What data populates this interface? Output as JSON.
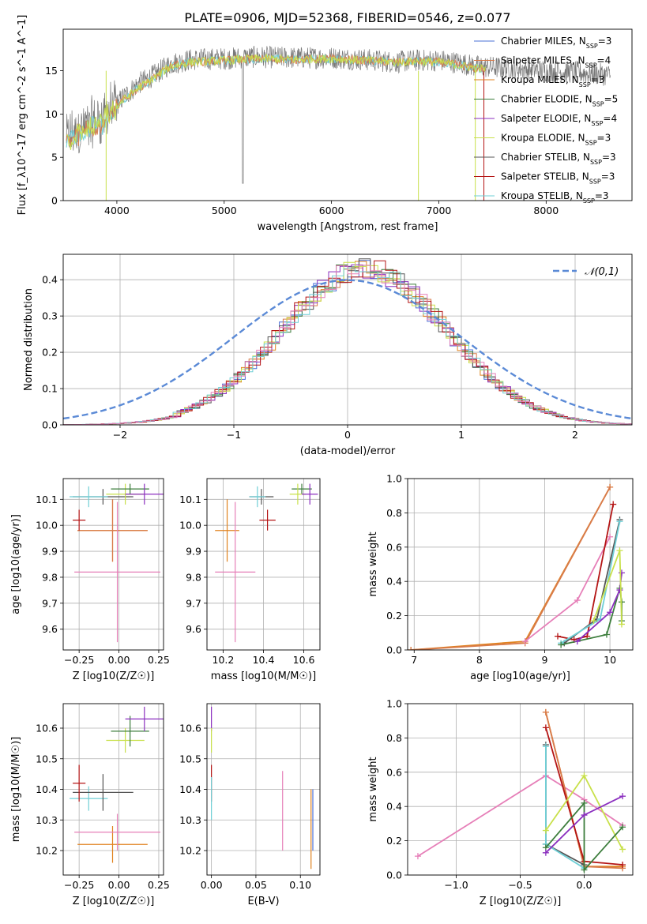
{
  "figure": {
    "title": "PLATE=0906, MJD=52368, FIBERID=0546, z=0.077"
  },
  "colors": {
    "Chabrier MILES": "#4a6fd6",
    "Salpeter MILES": "#d87b4b",
    "Kroupa MILES": "#e0821f",
    "Chabrier ELODIE": "#3c7d3c",
    "Salpeter ELODIE": "#8b2fbf",
    "Kroupa ELODIE": "#c8e04a",
    "Chabrier STELIB": "#555555",
    "Salpeter STELIB": "#b41414",
    "Kroupa STELIB": "#6fcfd6",
    "Pink": "#e67fb8",
    "Normal": "#5b8ad6"
  },
  "chart_data": [
    {
      "id": "spectrum",
      "type": "line",
      "xlabel": "wavelength [Angstrom, rest frame]",
      "ylabel": "Flux [f_λ10^-17 erg cm^-2 s^-1 A^-1]",
      "xlim": [
        3500,
        8800
      ],
      "ylim": [
        0,
        19.8
      ],
      "xticks": [
        4000,
        5000,
        6000,
        7000,
        8000
      ],
      "yticks": [
        0,
        5,
        10,
        15
      ],
      "grid": false,
      "legend_position": "right",
      "legend": [
        {
          "name": "Chabrier MILES",
          "nssp": "3"
        },
        {
          "name": "Salpeter MILES",
          "nssp": "4"
        },
        {
          "name": "Kroupa MILES",
          "nssp": "3"
        },
        {
          "name": "Chabrier ELODIE",
          "nssp": "5"
        },
        {
          "name": "Salpeter ELODIE",
          "nssp": "4"
        },
        {
          "name": "Kroupa ELODIE",
          "nssp": "3"
        },
        {
          "name": "Chabrier STELIB",
          "nssp": "3"
        },
        {
          "name": "Salpeter STELIB",
          "nssp": "3"
        },
        {
          "name": "Kroupa STELIB",
          "nssp": "3"
        }
      ],
      "data_series": [
        {
          "x": [
            3550,
            3700,
            3850,
            3950,
            4050,
            4200,
            4350,
            4500,
            4700,
            5000,
            5300,
            5600,
            6000,
            6300,
            6600,
            6800,
            7000,
            7200,
            7350,
            7500,
            7800,
            8000,
            8300,
            8600
          ],
          "y": [
            7.2,
            8.5,
            9.5,
            10.5,
            11.8,
            13.5,
            14.5,
            15.8,
            16.3,
            16.4,
            16.6,
            16.5,
            16.5,
            16.3,
            16.0,
            16.2,
            16.2,
            15.9,
            15.5,
            15.4,
            15.2,
            15.0,
            14.8,
            14.5
          ]
        }
      ],
      "model_series": [
        {
          "x": [
            3550,
            3700,
            3850,
            3950,
            4050,
            4200,
            4350,
            4500,
            4700,
            5000,
            5300,
            5600,
            6000,
            6300,
            6600,
            6800,
            7000,
            7200,
            7350,
            7450
          ],
          "y": [
            7.0,
            8.0,
            9.0,
            10.0,
            11.5,
            13.0,
            14.2,
            15.5,
            16.0,
            16.2,
            16.4,
            16.3,
            16.4,
            16.2,
            16.0,
            16.1,
            16.0,
            15.6,
            15.3,
            15.2
          ]
        }
      ]
    },
    {
      "id": "residual-histogram",
      "type": "line",
      "xlabel": "(data-model)/error",
      "ylabel": "Normed distribution",
      "xlim": [
        -2.5,
        2.5
      ],
      "ylim": [
        0,
        0.47
      ],
      "xticks": [
        -2,
        -1,
        0,
        1,
        2
      ],
      "yticks": [
        0.0,
        0.1,
        0.2,
        0.3,
        0.4
      ],
      "grid": true,
      "legend_position": "top-right",
      "legend_label": "𝒩(0,1)",
      "normal_curve": {
        "mean": 0,
        "sigma": 1
      }
    },
    {
      "id": "age-vs-metallicity",
      "type": "scatter",
      "xlabel": "Z [log10(Z/Z☉)]",
      "ylabel": "age [log10(age/yr)]",
      "xlim": [
        -0.35,
        0.28
      ],
      "ylim": [
        9.52,
        10.18
      ],
      "xticks": [
        -0.25,
        0.0,
        0.25
      ],
      "yticks": [
        9.6,
        9.7,
        9.8,
        9.9,
        10.0,
        10.1
      ],
      "points": [
        {
          "model": "Kroupa MILES",
          "x": -0.04,
          "y": 9.98,
          "xerr": 0.22,
          "yerr": 0.12
        },
        {
          "model": "Salpeter MILES",
          "x": -0.04,
          "y": 9.98,
          "xerr": 0.22,
          "yerr": 0.12
        },
        {
          "model": "Pink",
          "x": -0.01,
          "y": 9.82,
          "xerr": 0.27,
          "yerr": 0.27
        },
        {
          "model": "Salpeter STELIB",
          "x": -0.25,
          "y": 10.02,
          "xerr": 0.04,
          "yerr": 0.04
        },
        {
          "model": "Chabrier STELIB",
          "x": -0.1,
          "y": 10.11,
          "xerr": 0.19,
          "yerr": 0.03
        },
        {
          "model": "Kroupa STELIB",
          "x": -0.19,
          "y": 10.11,
          "xerr": 0.12,
          "yerr": 0.04
        },
        {
          "model": "Kroupa ELODIE",
          "x": 0.04,
          "y": 10.12,
          "xerr": 0.12,
          "yerr": 0.04
        },
        {
          "model": "Chabrier ELODIE",
          "x": 0.07,
          "y": 10.14,
          "xerr": 0.12,
          "yerr": 0.02
        },
        {
          "model": "Salpeter ELODIE",
          "x": 0.16,
          "y": 10.12,
          "xerr": 0.12,
          "yerr": 0.04
        }
      ]
    },
    {
      "id": "age-vs-mass",
      "type": "scatter",
      "xlabel": "mass [log10(M/M☉)]",
      "ylabel": "",
      "xlim": [
        10.12,
        10.68
      ],
      "ylim": [
        9.52,
        10.18
      ],
      "xticks": [
        10.2,
        10.4,
        10.6
      ],
      "yticks": [
        9.6,
        9.7,
        9.8,
        9.9,
        10.0,
        10.1
      ],
      "points": [
        {
          "model": "Kroupa MILES",
          "x": 10.22,
          "y": 9.98,
          "xerr": 0.06,
          "yerr": 0.12
        },
        {
          "model": "Pink",
          "x": 10.26,
          "y": 9.82,
          "xerr": 0.1,
          "yerr": 0.27
        },
        {
          "model": "Salpeter STELIB",
          "x": 10.42,
          "y": 10.02,
          "xerr": 0.04,
          "yerr": 0.04
        },
        {
          "model": "Chabrier STELIB",
          "x": 10.39,
          "y": 10.11,
          "xerr": 0.06,
          "yerr": 0.03
        },
        {
          "model": "Kroupa STELIB",
          "x": 10.37,
          "y": 10.11,
          "xerr": 0.04,
          "yerr": 0.04
        },
        {
          "model": "Chabrier ELODIE",
          "x": 10.59,
          "y": 10.14,
          "xerr": 0.05,
          "yerr": 0.02
        },
        {
          "model": "Kroupa ELODIE",
          "x": 10.57,
          "y": 10.12,
          "xerr": 0.04,
          "yerr": 0.04
        },
        {
          "model": "Salpeter ELODIE",
          "x": 10.63,
          "y": 10.12,
          "xerr": 0.04,
          "yerr": 0.04
        }
      ]
    },
    {
      "id": "mass-weight-vs-age",
      "type": "line",
      "xlabel": "age [log10(age/yr)]",
      "ylabel": "mass weight",
      "xlim": [
        6.9,
        10.35
      ],
      "ylim": [
        0,
        1.0
      ],
      "xticks": [
        7,
        8,
        9,
        10
      ],
      "yticks": [
        0.0,
        0.2,
        0.4,
        0.6,
        0.8,
        1.0
      ],
      "grid": true,
      "series": [
        {
          "model": "Kroupa MILES",
          "x": [
            6.95,
            8.7,
            10.0
          ],
          "y": [
            0.0,
            0.05,
            0.95
          ]
        },
        {
          "model": "Salpeter MILES",
          "x": [
            6.95,
            8.7,
            10.0
          ],
          "y": [
            0.0,
            0.04,
            0.95
          ]
        },
        {
          "model": "Pink",
          "x": [
            8.7,
            9.5,
            10.0
          ],
          "y": [
            0.05,
            0.29,
            0.66
          ]
        },
        {
          "model": "Salpeter STELIB",
          "x": [
            9.2,
            9.45,
            9.65,
            10.05
          ],
          "y": [
            0.08,
            0.06,
            0.08,
            0.85
          ]
        },
        {
          "model": "Chabrier STELIB",
          "x": [
            9.3,
            9.8,
            10.15
          ],
          "y": [
            0.04,
            0.18,
            0.76
          ]
        },
        {
          "model": "Kroupa STELIB",
          "x": [
            9.25,
            9.85,
            10.15
          ],
          "y": [
            0.04,
            0.18,
            0.75
          ]
        },
        {
          "model": "Chabrier ELODIE",
          "x": [
            9.25,
            9.95,
            10.15,
            10.18,
            10.18
          ],
          "y": [
            0.03,
            0.09,
            0.36,
            0.28,
            0.17
          ]
        },
        {
          "model": "Salpeter ELODIE",
          "x": [
            9.5,
            10.0,
            10.15,
            10.18
          ],
          "y": [
            0.05,
            0.22,
            0.35,
            0.45
          ]
        },
        {
          "model": "Kroupa ELODIE",
          "x": [
            9.75,
            10.15,
            10.18
          ],
          "y": [
            0.17,
            0.58,
            0.15
          ]
        }
      ]
    },
    {
      "id": "mass-vs-metallicity",
      "type": "scatter",
      "xlabel": "Z [log10(Z/Z☉)]",
      "ylabel": "mass [log10(M/M☉)]",
      "xlim": [
        -0.35,
        0.28
      ],
      "ylim": [
        10.12,
        10.68
      ],
      "xticks": [
        -0.25,
        0.0,
        0.25
      ],
      "yticks": [
        10.2,
        10.3,
        10.4,
        10.5,
        10.6
      ],
      "points": [
        {
          "model": "Kroupa MILES",
          "x": -0.04,
          "y": 10.22,
          "xerr": 0.22,
          "yerr": 0.06
        },
        {
          "model": "Pink",
          "x": -0.01,
          "y": 10.26,
          "xerr": 0.27,
          "yerr": 0.06
        },
        {
          "model": "Kroupa STELIB",
          "x": -0.19,
          "y": 10.37,
          "xerr": 0.12,
          "yerr": 0.04
        },
        {
          "model": "Chabrier STELIB",
          "x": -0.1,
          "y": 10.39,
          "xerr": 0.19,
          "yerr": 0.06
        },
        {
          "model": "Salpeter STELIB",
          "x": -0.25,
          "y": 10.42,
          "xerr": 0.04,
          "yerr": 0.06
        },
        {
          "model": "Kroupa ELODIE",
          "x": 0.04,
          "y": 10.56,
          "xerr": 0.12,
          "yerr": 0.04
        },
        {
          "model": "Chabrier ELODIE",
          "x": 0.07,
          "y": 10.59,
          "xerr": 0.12,
          "yerr": 0.05
        },
        {
          "model": "Salpeter ELODIE",
          "x": 0.16,
          "y": 10.63,
          "xerr": 0.12,
          "yerr": 0.04
        }
      ]
    },
    {
      "id": "mass-vs-ebv",
      "type": "scatter",
      "xlabel": "E(B-V)",
      "ylabel": "",
      "xlim": [
        -0.005,
        0.122
      ],
      "ylim": [
        10.12,
        10.68
      ],
      "xticks": [
        0.0,
        0.05,
        0.1
      ],
      "yticks": [
        10.2,
        10.3,
        10.4,
        10.5,
        10.6
      ],
      "points": [
        {
          "model": "Salpeter ELODIE",
          "x": 0.0,
          "y": 10.63,
          "xerr": 0,
          "yerr": 0.04
        },
        {
          "model": "Kroupa ELODIE",
          "x": 0.0,
          "y": 10.56,
          "xerr": 0,
          "yerr": 0.04
        },
        {
          "model": "Salpeter STELIB",
          "x": 0.0,
          "y": 10.42,
          "xerr": 0,
          "yerr": 0.06
        },
        {
          "model": "Kroupa STELIB",
          "x": 0.0,
          "y": 10.37,
          "xerr": 0,
          "yerr": 0.07
        },
        {
          "model": "Pink",
          "x": 0.08,
          "y": 10.33,
          "xerr": 0,
          "yerr": 0.13
        },
        {
          "model": "Kroupa MILES",
          "x": 0.112,
          "y": 10.27,
          "xerr": 0,
          "yerr": 0.13
        },
        {
          "model": "Chabrier MILES",
          "x": 0.114,
          "y": 10.3,
          "xerr": 0,
          "yerr": 0.1
        }
      ]
    },
    {
      "id": "mass-weight-vs-metallicity",
      "type": "line",
      "xlabel": "Z [log10(Z/Z☉)]",
      "ylabel": "mass weight",
      "xlim": [
        -1.38,
        0.38
      ],
      "ylim": [
        0,
        1.0
      ],
      "xticks": [
        -1.0,
        -0.5,
        0.0
      ],
      "yticks": [
        0.0,
        0.2,
        0.4,
        0.6,
        0.8,
        1.0
      ],
      "grid": true,
      "series": [
        {
          "model": "Pink",
          "x": [
            -1.3,
            -0.3,
            0.0,
            0.3
          ],
          "y": [
            0.11,
            0.58,
            0.44,
            0.29
          ]
        },
        {
          "model": "Kroupa MILES",
          "x": [
            -0.3,
            0.0,
            0.3
          ],
          "y": [
            0.95,
            0.05,
            0.05
          ]
        },
        {
          "model": "Salpeter MILES",
          "x": [
            -0.3,
            0.0,
            0.3
          ],
          "y": [
            0.95,
            0.05,
            0.04
          ]
        },
        {
          "model": "Salpeter STELIB",
          "x": [
            -0.3,
            0.0,
            0.3
          ],
          "y": [
            0.86,
            0.08,
            0.06
          ]
        },
        {
          "model": "Chabrier STELIB",
          "x": [
            -0.3,
            -0.3,
            0.0
          ],
          "y": [
            0.76,
            0.18,
            0.06
          ]
        },
        {
          "model": "Kroupa STELIB",
          "x": [
            -0.3,
            -0.3,
            0.0
          ],
          "y": [
            0.75,
            0.18,
            0.04
          ]
        },
        {
          "model": "Kroupa ELODIE",
          "x": [
            -0.3,
            0.0,
            0.3
          ],
          "y": [
            0.26,
            0.58,
            0.15
          ]
        },
        {
          "model": "Chabrier ELODIE",
          "x": [
            -0.3,
            0.0,
            0.0,
            0.3
          ],
          "y": [
            0.16,
            0.42,
            0.03,
            0.28
          ]
        },
        {
          "model": "Salpeter ELODIE",
          "x": [
            -0.3,
            0.0,
            0.3
          ],
          "y": [
            0.13,
            0.35,
            0.46
          ]
        }
      ]
    }
  ]
}
